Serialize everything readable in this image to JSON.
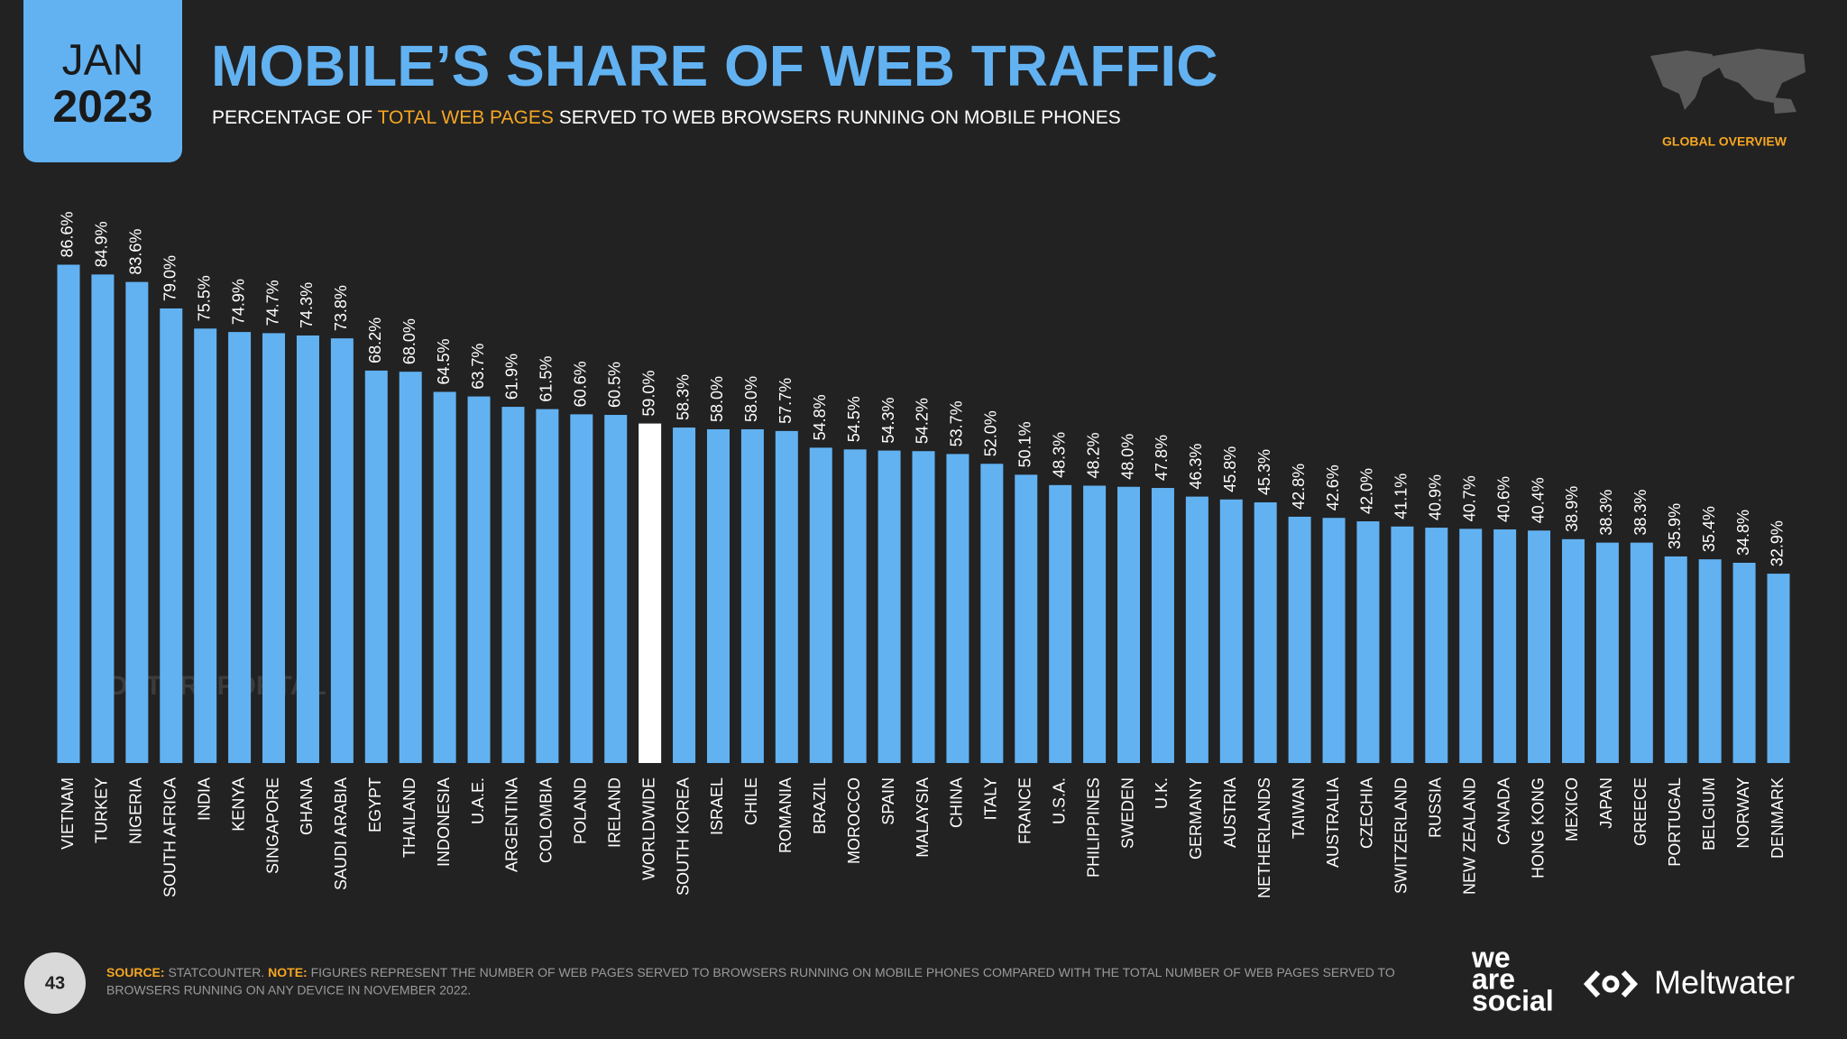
{
  "chart_data": {
    "type": "bar",
    "title": "MOBILE’S SHARE OF WEB TRAFFIC",
    "subtitle": [
      "PERCENTAGE OF ",
      "TOTAL WEB PAGES",
      " SERVED TO WEB BROWSERS RUNNING ON MOBILE PHONES"
    ],
    "categories": [
      "VIETNAM",
      "TURKEY",
      "NIGERIA",
      "SOUTH AFRICA",
      "INDIA",
      "KENYA",
      "SINGAPORE",
      "GHANA",
      "SAUDI ARABIA",
      "EGYPT",
      "THAILAND",
      "INDONESIA",
      "U.A.E.",
      "ARGENTINA",
      "COLOMBIA",
      "POLAND",
      "IRELAND",
      "WORLDWIDE",
      "SOUTH KOREA",
      "ISRAEL",
      "CHILE",
      "ROMANIA",
      "BRAZIL",
      "MOROCCO",
      "SPAIN",
      "MALAYSIA",
      "CHINA",
      "ITALY",
      "FRANCE",
      "U.S.A.",
      "PHILIPPINES",
      "SWEDEN",
      "U.K.",
      "GERMANY",
      "AUSTRIA",
      "NETHERLANDS",
      "TAIWAN",
      "AUSTRALIA",
      "CZECHIA",
      "SWITZERLAND",
      "RUSSIA",
      "NEW ZEALAND",
      "CANADA",
      "HONG KONG",
      "MEXICO",
      "JAPAN",
      "GREECE",
      "PORTUGAL",
      "BELGIUM",
      "NORWAY",
      "DENMARK"
    ],
    "values": [
      86.6,
      84.9,
      83.6,
      79.0,
      75.5,
      74.9,
      74.7,
      74.3,
      73.8,
      68.2,
      68.0,
      64.5,
      63.7,
      61.9,
      61.5,
      60.6,
      60.5,
      59.0,
      58.3,
      58.0,
      58.0,
      57.7,
      54.8,
      54.5,
      54.3,
      54.2,
      53.7,
      52.0,
      50.1,
      48.3,
      48.2,
      48.0,
      47.8,
      46.3,
      45.8,
      45.3,
      42.8,
      42.6,
      42.0,
      41.1,
      40.9,
      40.7,
      40.6,
      40.4,
      38.9,
      38.3,
      38.3,
      35.9,
      35.4,
      34.8,
      32.9
    ],
    "value_labels": [
      "86.6%",
      "84.9%",
      "83.6%",
      "79.0%",
      "75.5%",
      "74.9%",
      "74.7%",
      "74.3%",
      "73.8%",
      "68.2%",
      "68.0%",
      "64.5%",
      "63.7%",
      "61.9%",
      "61.5%",
      "60.6%",
      "60.5%",
      "59.0%",
      "58.3%",
      "58.0%",
      "58.0%",
      "57.7%",
      "54.8%",
      "54.5%",
      "54.3%",
      "54.2%",
      "53.7%",
      "52.0%",
      "50.1%",
      "48.3%",
      "48.2%",
      "48.0%",
      "47.8%",
      "46.3%",
      "45.8%",
      "45.3%",
      "42.8%",
      "42.6%",
      "42.0%",
      "41.1%",
      "40.9%",
      "40.7%",
      "40.6%",
      "40.4%",
      "38.9%",
      "38.3%",
      "38.3%",
      "35.9%",
      "35.4%",
      "34.8%",
      "32.9%"
    ],
    "colors": [
      "#62b2f2",
      "#62b2f2",
      "#62b2f2",
      "#62b2f2",
      "#62b2f2",
      "#62b2f2",
      "#62b2f2",
      "#62b2f2",
      "#62b2f2",
      "#62b2f2",
      "#62b2f2",
      "#62b2f2",
      "#62b2f2",
      "#62b2f2",
      "#62b2f2",
      "#62b2f2",
      "#62b2f2",
      "#ffffff",
      "#62b2f2",
      "#62b2f2",
      "#62b2f2",
      "#62b2f2",
      "#62b2f2",
      "#62b2f2",
      "#62b2f2",
      "#62b2f2",
      "#62b2f2",
      "#62b2f2",
      "#62b2f2",
      "#62b2f2",
      "#62b2f2",
      "#62b2f2",
      "#62b2f2",
      "#62b2f2",
      "#62b2f2",
      "#62b2f2",
      "#62b2f2",
      "#62b2f2",
      "#62b2f2",
      "#62b2f2",
      "#62b2f2",
      "#62b2f2",
      "#62b2f2",
      "#62b2f2",
      "#62b2f2",
      "#62b2f2",
      "#62b2f2",
      "#62b2f2",
      "#62b2f2",
      "#62b2f2",
      "#62b2f2"
    ],
    "ylim": [
      0,
      100
    ]
  },
  "header": {
    "month": "JAN",
    "year": "2023",
    "section": "GLOBAL OVERVIEW"
  },
  "watermark": "DATAREPORTAL",
  "footer": {
    "page": "43",
    "source_label": "SOURCE:",
    "source": " STATCOUNTER. ",
    "note_label": "NOTE:",
    "note": [
      " FIGURES REPRESENT THE NUMBER OF WEB PAGES SERVED TO BROWSERS RUNNING ON MOBILE PHONES COMPARED WITH THE TOTAL NUMBER OF WEB PAGES SERVED TO",
      "BROWSERS RUNNING ON ANY DEVICE IN NOVEMBER 2022."
    ],
    "logo_1": [
      "we",
      "are",
      "social"
    ],
    "logo_2": "Meltwater"
  }
}
